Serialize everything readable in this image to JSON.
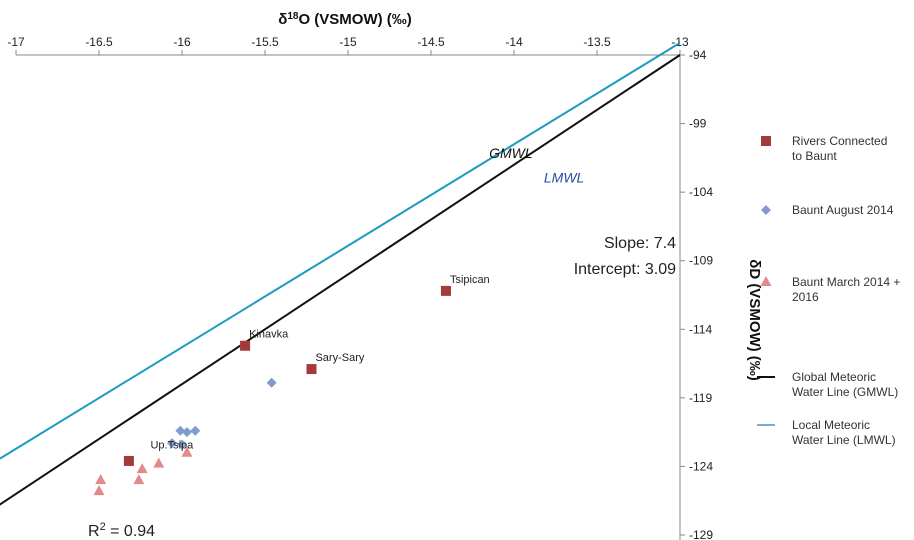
{
  "chart_data": {
    "type": "scatter",
    "xlabel": "δ18O (VSMOW) (‰)",
    "ylabel": "δD (VSMOW) (‰)",
    "xlim": [
      -17,
      -13
    ],
    "ylim": [
      -129,
      -94
    ],
    "x_ticks": [
      "-17",
      "-16.5",
      "-16",
      "-15.5",
      "-15",
      "-14.5",
      "-14",
      "-13.5",
      "-13"
    ],
    "y_ticks": [
      "-94",
      "-99",
      "-104",
      "-109",
      "-114",
      "-119",
      "-124",
      "-129"
    ],
    "series": [
      {
        "name": "Rivers Connected to Baunt",
        "marker": "square",
        "color": "#a33b3b",
        "points": [
          {
            "x": -16.32,
            "y": -123.6,
            "label": ""
          },
          {
            "x": -15.62,
            "y": -115.2,
            "label": "Kinavka"
          },
          {
            "x": -15.22,
            "y": -116.9,
            "label": "Sary-Sary"
          },
          {
            "x": -14.41,
            "y": -111.2,
            "label": "Tsipican"
          }
        ]
      },
      {
        "name": "Baunt August 2014",
        "marker": "diamond",
        "color": "#7f9ccc",
        "points": [
          {
            "x": -15.46,
            "y": -117.9
          },
          {
            "x": -16.01,
            "y": -121.4
          },
          {
            "x": -15.97,
            "y": -121.5
          },
          {
            "x": -15.92,
            "y": -121.4
          },
          {
            "x": -16.06,
            "y": -122.3
          },
          {
            "x": -16.0,
            "y": -122.4
          }
        ]
      },
      {
        "name": "Baunt March 2014 + 2016",
        "marker": "triangle",
        "color": "#e08a8a",
        "points": [
          {
            "x": -16.49,
            "y": -125.0
          },
          {
            "x": -16.5,
            "y": -125.8
          },
          {
            "x": -16.26,
            "y": -125.0
          },
          {
            "x": -16.24,
            "y": -124.2
          },
          {
            "x": -16.14,
            "y": -123.8
          },
          {
            "x": -15.97,
            "y": -123.0
          }
        ]
      }
    ],
    "lines": [
      {
        "name": "Global Meteoric Water Line (GMWL)",
        "label": "GMWL",
        "slope": 8,
        "intercept": 10,
        "color": "#111111",
        "label_color": "#111111",
        "label_x": -14.15,
        "label_y": -101.5
      },
      {
        "name": "Local Meteoric Water Line (LMWL)",
        "label": "LMWL",
        "slope": 7.4,
        "intercept": 3.09,
        "color": "#1b9bbf",
        "label_color": "#2a4aa6",
        "label_x": -13.82,
        "label_y": -103.3
      }
    ],
    "point_label_extra": {
      "text": "Up.Tsipa",
      "x": -16.19,
      "y": -122.7
    },
    "annotations": {
      "slope": "Slope: 7.4",
      "intercept": "Intercept: 3.09",
      "r2_main": "R",
      "r2_sup": "2",
      "r2_value": " = 0.94"
    },
    "legend": {
      "position": "right",
      "entries": [
        {
          "text": "Rivers Connected to Baunt",
          "marker": "square",
          "color": "#a33b3b"
        },
        {
          "text": "Baunt August 2014",
          "marker": "diamond",
          "color": "#7f9ccc"
        },
        {
          "text": "Baunt March 2014 + 2016",
          "marker": "triangle",
          "color": "#e08a8a"
        },
        {
          "text": "Global Meteoric Water Line (GMWL)",
          "marker": "line",
          "color": "#111111"
        },
        {
          "text": "Local Meteoric Water Line (LMWL)",
          "marker": "line",
          "color": "#7fa8d8"
        }
      ]
    }
  }
}
